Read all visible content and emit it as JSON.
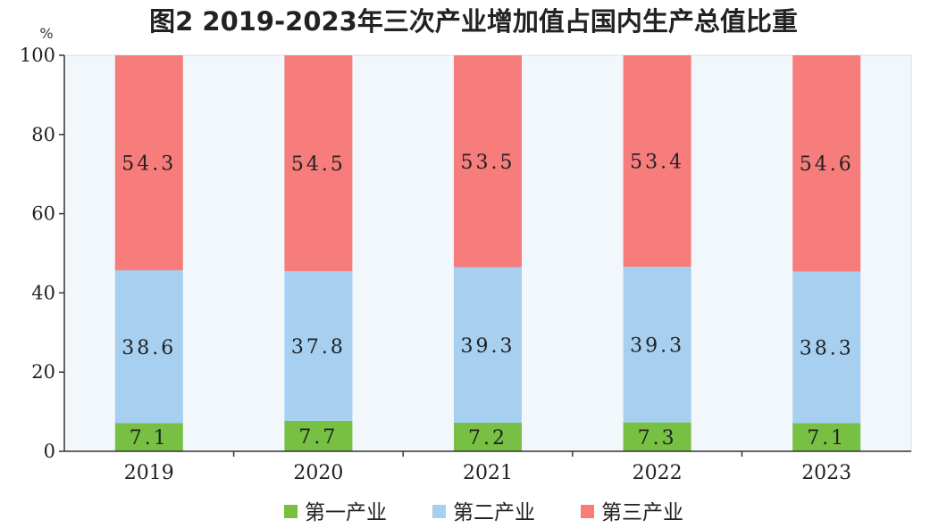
{
  "chart_data": {
    "type": "bar",
    "stacked": true,
    "title": "图2  2019-2023年三次产业增加值占国内生产总值比重",
    "y_unit": "%",
    "ylim": [
      0,
      100
    ],
    "yticks": [
      "0",
      "20",
      "40",
      "60",
      "80",
      "100"
    ],
    "grid": false,
    "legend_position": "bottom",
    "categories": [
      "2019",
      "2020",
      "2021",
      "2022",
      "2023"
    ],
    "series": [
      {
        "name": "第一产业",
        "color": "#77c043",
        "values": [
          7.1,
          7.7,
          7.2,
          7.3,
          7.1
        ],
        "labels": [
          "7.1",
          "7.7",
          "7.2",
          "7.3",
          "7.1"
        ]
      },
      {
        "name": "第二产业",
        "color": "#a6cff0",
        "values": [
          38.6,
          37.8,
          39.3,
          39.3,
          38.3
        ],
        "labels": [
          "38.6",
          "37.8",
          "39.3",
          "39.3",
          "38.3"
        ]
      },
      {
        "name": "第三产业",
        "color": "#f77c7c",
        "values": [
          54.3,
          54.5,
          53.5,
          53.4,
          54.6
        ],
        "labels": [
          "54.3",
          "54.5",
          "53.5",
          "53.4",
          "54.6"
        ]
      }
    ]
  }
}
